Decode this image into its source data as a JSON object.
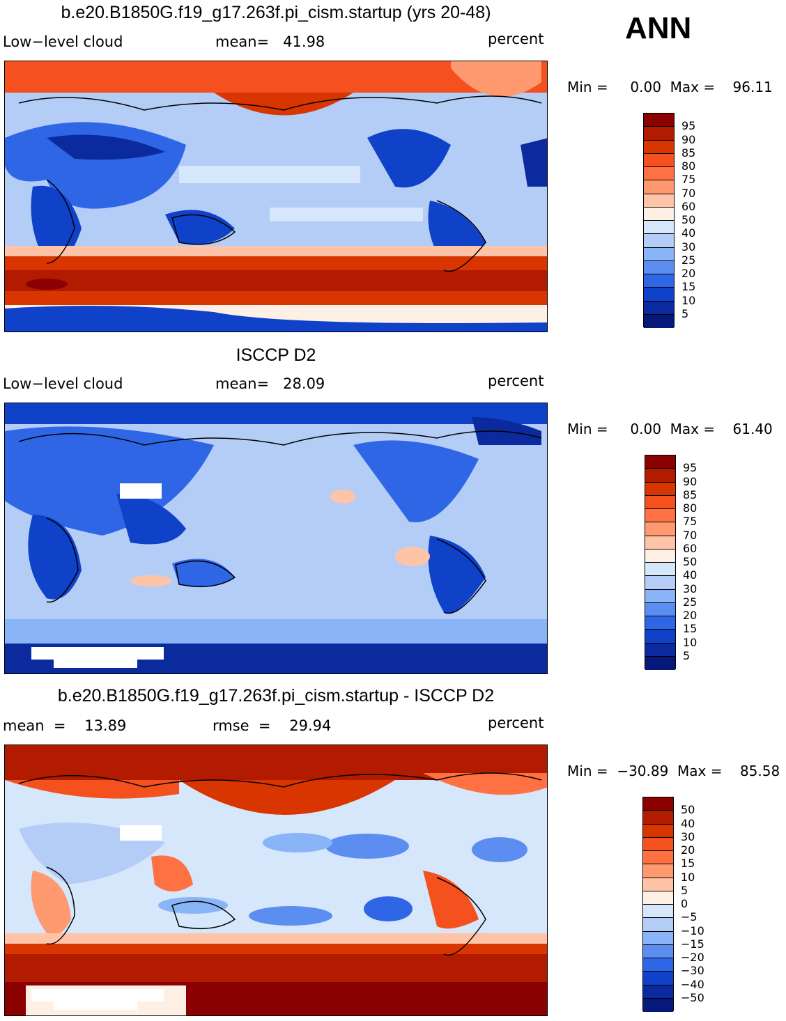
{
  "season": "ANN",
  "panels": [
    {
      "title": "b.e20.B1850G.f19_g17.263f.pi_cism.startup (yrs 20-48)",
      "left_label": "Low−level cloud",
      "center_label": "mean=   41.98",
      "units": "percent",
      "minmax": "Min =     0.00  Max =    96.11",
      "levels": [
        "95",
        "90",
        "85",
        "80",
        "75",
        "70",
        "60",
        "50",
        "40",
        "30",
        "25",
        "20",
        "15",
        "10",
        "5"
      ]
    },
    {
      "title": "ISCCP D2",
      "left_label": "Low−level cloud",
      "center_label": "mean=   28.09",
      "units": "percent",
      "minmax": "Min =     0.00  Max =    61.40",
      "levels": [
        "95",
        "90",
        "85",
        "80",
        "75",
        "70",
        "60",
        "50",
        "40",
        "30",
        "25",
        "20",
        "15",
        "10",
        "5"
      ]
    },
    {
      "title": "b.e20.B1850G.f19_g17.263f.pi_cism.startup - ISCCP D2",
      "left_label": "mean  =    13.89",
      "center_label": "rmse  =    29.94",
      "units": "percent",
      "minmax": "Min =  −30.89  Max =    85.58",
      "levels": [
        "50",
        "40",
        "30",
        "20",
        "15",
        "10",
        "5",
        "0",
        "−5",
        "−10",
        "−15",
        "−20",
        "−30",
        "−40",
        "−50"
      ]
    }
  ],
  "colors": {
    "scale": [
      "#8b0000",
      "#b31b00",
      "#d93500",
      "#f4511e",
      "#ff7043",
      "#ff9a70",
      "#ffc4a8",
      "#fff0e6",
      "#d6e6fb",
      "#b3cdf7",
      "#8ab4f8",
      "#5b8ef0",
      "#2e66e6",
      "#1042c9",
      "#0a2a9e",
      "#06197a"
    ]
  }
}
